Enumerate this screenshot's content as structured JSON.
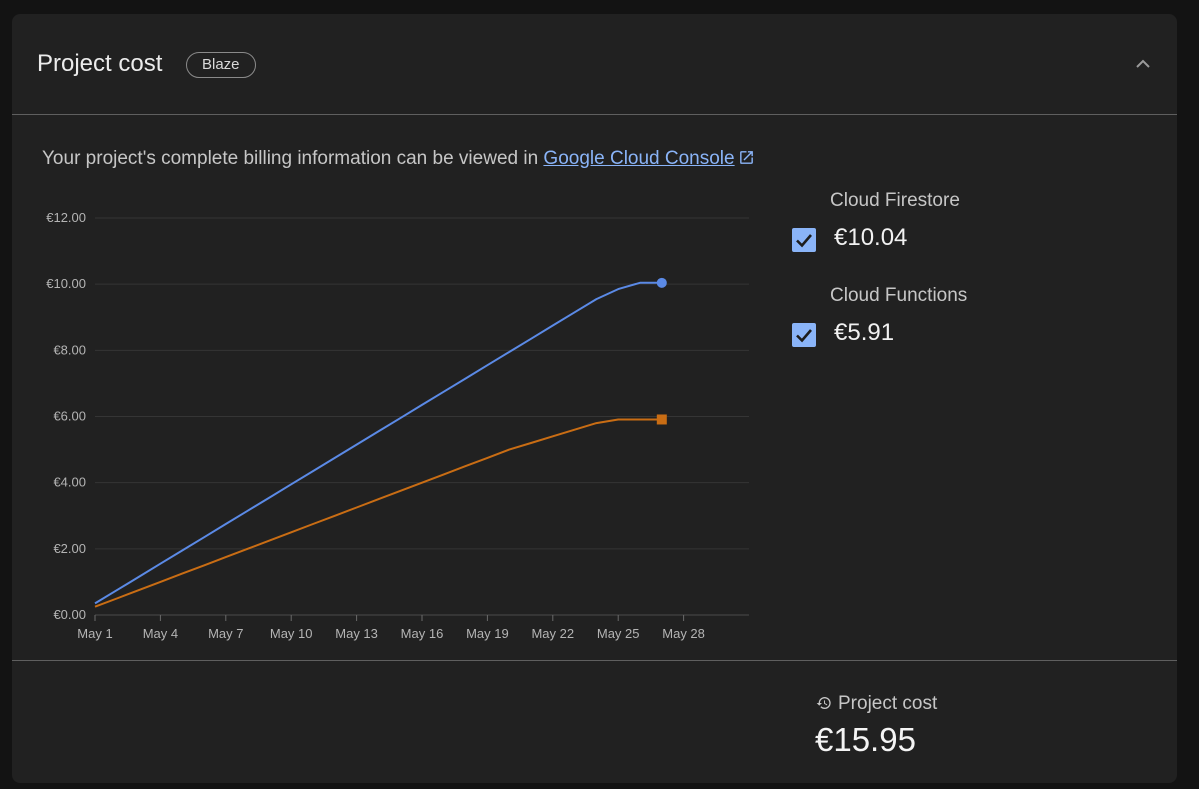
{
  "header": {
    "title": "Project cost",
    "plan_badge": "Blaze"
  },
  "billing_info": {
    "text": "Your project's complete billing information can be viewed in ",
    "link_label": "Google Cloud Console"
  },
  "legend": [
    {
      "name": "Cloud Firestore",
      "value": "€10.04",
      "checked": true,
      "color": "#8ab4f8"
    },
    {
      "name": "Cloud Functions",
      "value": "€5.91",
      "checked": true,
      "color": "#8ab4f8"
    }
  ],
  "footer": {
    "label": "Project cost",
    "total": "€15.95"
  },
  "colors": {
    "accent": "#8ab4f8",
    "firestore_line": "#5b8ae6",
    "functions_line": "#c96d14"
  },
  "chart_data": {
    "type": "line",
    "x_ticks": [
      "May 1",
      "May 4",
      "May 7",
      "May 10",
      "May 13",
      "May 16",
      "May 19",
      "May 22",
      "May 25",
      "May 28"
    ],
    "y_ticks": [
      "€0.00",
      "€2.00",
      "€4.00",
      "€6.00",
      "€8.00",
      "€10.00",
      "€12.00"
    ],
    "ylim": [
      0,
      12
    ],
    "xlim_days": [
      1,
      31
    ],
    "grid": true,
    "series": [
      {
        "name": "Cloud Firestore",
        "color": "#5b8ae6",
        "marker": "circle",
        "days": [
          1,
          2,
          3,
          4,
          5,
          6,
          7,
          8,
          9,
          10,
          11,
          12,
          13,
          14,
          15,
          16,
          17,
          18,
          19,
          20,
          21,
          22,
          23,
          24,
          25,
          26,
          27
        ],
        "values": [
          0.35,
          0.75,
          1.15,
          1.55,
          1.95,
          2.35,
          2.75,
          3.15,
          3.55,
          3.95,
          4.35,
          4.75,
          5.15,
          5.55,
          5.95,
          6.35,
          6.75,
          7.15,
          7.55,
          7.95,
          8.35,
          8.75,
          9.15,
          9.55,
          9.85,
          10.04,
          10.04
        ]
      },
      {
        "name": "Cloud Functions",
        "color": "#c96d14",
        "marker": "square",
        "days": [
          1,
          2,
          3,
          4,
          5,
          6,
          7,
          8,
          9,
          10,
          11,
          12,
          13,
          14,
          15,
          16,
          17,
          18,
          19,
          20,
          21,
          22,
          23,
          24,
          25,
          26,
          27
        ],
        "values": [
          0.25,
          0.5,
          0.75,
          1.0,
          1.25,
          1.5,
          1.75,
          2.0,
          2.25,
          2.5,
          2.75,
          3.0,
          3.25,
          3.5,
          3.75,
          4.0,
          4.25,
          4.5,
          4.75,
          5.0,
          5.2,
          5.4,
          5.6,
          5.8,
          5.91,
          5.91,
          5.91
        ]
      }
    ]
  }
}
